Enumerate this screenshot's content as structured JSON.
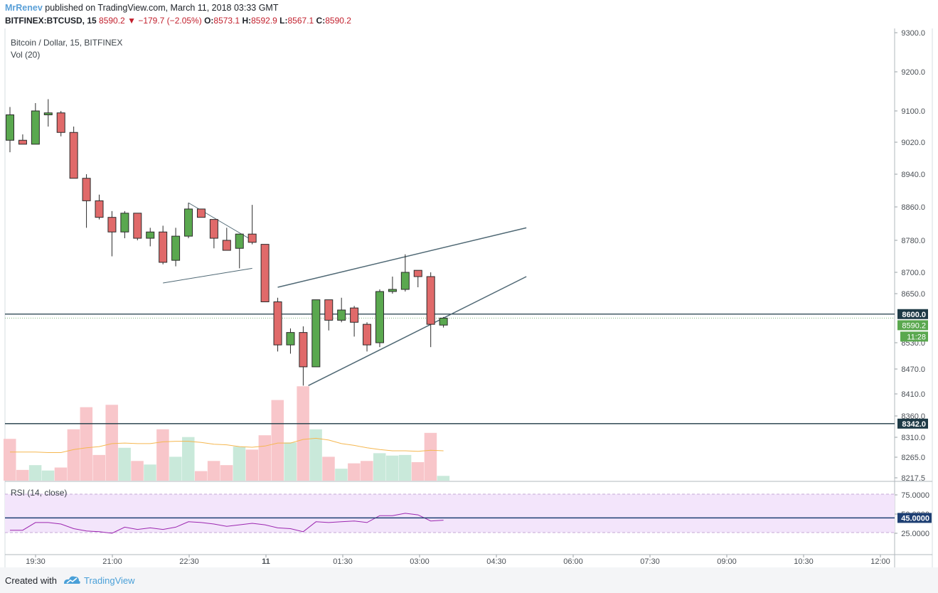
{
  "header": {
    "author": "MrRenev",
    "published_text": "published on TradingView.com, March 11, 2018 03:33 GMT",
    "symbol": "BITFINEX:BTCUSD, 15",
    "last": "8590.2",
    "change": "−179.7 (−2.05%)",
    "o_label": "O:",
    "o_value": "8573.1",
    "h_label": "H:",
    "h_value": "8592.9",
    "l_label": "L:",
    "l_value": "8567.1",
    "c_label": "C:",
    "c_value": "8590.2"
  },
  "legend": {
    "title": "Bitcoin / Dollar, 15, BITFINEX",
    "vol": "Vol (20)",
    "rsi": "RSI (14, close)"
  },
  "footer": {
    "created_with": "Created with",
    "brand": "TradingView",
    "icon": "tradingview-logo-icon"
  },
  "colors": {
    "up": "#5aa84f",
    "down": "#e06a6a",
    "vol_up": "#c9e9da",
    "vol_down": "#f8c6ca",
    "hline": "#1e3a46",
    "rsi_line": "#9c27b0",
    "rsi_band": "#f3e5fb",
    "ma": "#f5b750",
    "trendline": "#4f6874"
  },
  "chart_data": {
    "type": "candlestick",
    "price_axis_ticks": [
      9300,
      9200,
      9100,
      9020,
      8940,
      8860,
      8780,
      8700,
      8650,
      8530,
      8470,
      8410,
      8360,
      8310,
      8265,
      8217.5
    ],
    "price_axis_tick_labels": [
      "9300.0",
      "9200.0",
      "9100.0",
      "9020.0",
      "8940.0",
      "8860.0",
      "8780.0",
      "8700.0",
      "8650.0",
      "8530.0",
      "8470.0",
      "8410.0",
      "8360.0",
      "8310.0",
      "8265.0",
      "8217.5"
    ],
    "time_axis_labels": [
      "19:30",
      "21:00",
      "22:30",
      "11",
      "01:30",
      "03:00",
      "04:30",
      "06:00",
      "07:30",
      "09:00",
      "10:30",
      "12:00"
    ],
    "horizontal_levels": [
      {
        "value": 8600,
        "label": "8600.0"
      },
      {
        "value": 8342,
        "label": "8342.0"
      }
    ],
    "last_price_label": "8590.2",
    "countdown_label": "11:28",
    "candles": [
      {
        "o": 9025,
        "h": 9110,
        "l": 8995,
        "c": 9090
      },
      {
        "o": 9025,
        "h": 9040,
        "l": 9015,
        "c": 9015
      },
      {
        "o": 9015,
        "h": 9120,
        "l": 9015,
        "c": 9100
      },
      {
        "o": 9090,
        "h": 9130,
        "l": 9060,
        "c": 9095
      },
      {
        "o": 9095,
        "h": 9100,
        "l": 9035,
        "c": 9045
      },
      {
        "o": 9045,
        "h": 9060,
        "l": 8930,
        "c": 8930
      },
      {
        "o": 8930,
        "h": 8940,
        "l": 8810,
        "c": 8875
      },
      {
        "o": 8875,
        "h": 8890,
        "l": 8830,
        "c": 8835
      },
      {
        "o": 8835,
        "h": 8850,
        "l": 8740,
        "c": 8800
      },
      {
        "o": 8800,
        "h": 8850,
        "l": 8785,
        "c": 8845
      },
      {
        "o": 8845,
        "h": 8845,
        "l": 8780,
        "c": 8785
      },
      {
        "o": 8785,
        "h": 8810,
        "l": 8765,
        "c": 8800
      },
      {
        "o": 8800,
        "h": 8815,
        "l": 8720,
        "c": 8725
      },
      {
        "o": 8730,
        "h": 8810,
        "l": 8715,
        "c": 8790
      },
      {
        "o": 8790,
        "h": 8870,
        "l": 8785,
        "c": 8855
      },
      {
        "o": 8855,
        "h": 8855,
        "l": 8835,
        "c": 8835
      },
      {
        "o": 8830,
        "h": 8830,
        "l": 8760,
        "c": 8785
      },
      {
        "o": 8780,
        "h": 8810,
        "l": 8755,
        "c": 8755
      },
      {
        "o": 8760,
        "h": 8790,
        "l": 8710,
        "c": 8795
      },
      {
        "o": 8795,
        "h": 8865,
        "l": 8770,
        "c": 8775
      },
      {
        "o": 8770,
        "h": 8770,
        "l": 8630,
        "c": 8630
      },
      {
        "o": 8630,
        "h": 8640,
        "l": 8510,
        "c": 8525
      },
      {
        "o": 8525,
        "h": 8565,
        "l": 8505,
        "c": 8555
      },
      {
        "o": 8555,
        "h": 8570,
        "l": 8430,
        "c": 8475
      },
      {
        "o": 8475,
        "h": 8635,
        "l": 8475,
        "c": 8635
      },
      {
        "o": 8635,
        "h": 8635,
        "l": 8560,
        "c": 8585
      },
      {
        "o": 8585,
        "h": 8640,
        "l": 8580,
        "c": 8610
      },
      {
        "o": 8615,
        "h": 8620,
        "l": 8545,
        "c": 8580
      },
      {
        "o": 8575,
        "h": 8580,
        "l": 8510,
        "c": 8525
      },
      {
        "o": 8530,
        "h": 8660,
        "l": 8520,
        "c": 8655
      },
      {
        "o": 8655,
        "h": 8690,
        "l": 8650,
        "c": 8660
      },
      {
        "o": 8660,
        "h": 8745,
        "l": 8655,
        "c": 8700
      },
      {
        "o": 8705,
        "h": 8705,
        "l": 8665,
        "c": 8690
      },
      {
        "o": 8690,
        "h": 8700,
        "l": 8520,
        "c": 8575
      },
      {
        "o": 8573.1,
        "h": 8592.9,
        "l": 8567.1,
        "c": 8590.2
      }
    ],
    "volume": [
      {
        "v": 70,
        "up": false
      },
      {
        "v": 18,
        "up": false
      },
      {
        "v": 26,
        "up": true
      },
      {
        "v": 17,
        "up": true
      },
      {
        "v": 22,
        "up": false
      },
      {
        "v": 86,
        "up": false
      },
      {
        "v": 123,
        "up": false
      },
      {
        "v": 43,
        "up": false
      },
      {
        "v": 127,
        "up": false
      },
      {
        "v": 55,
        "up": true
      },
      {
        "v": 33,
        "up": false
      },
      {
        "v": 27,
        "up": true
      },
      {
        "v": 86,
        "up": false
      },
      {
        "v": 40,
        "up": true
      },
      {
        "v": 73,
        "up": true
      },
      {
        "v": 16,
        "up": false
      },
      {
        "v": 33,
        "up": false
      },
      {
        "v": 26,
        "up": false
      },
      {
        "v": 57,
        "up": true
      },
      {
        "v": 52,
        "up": false
      },
      {
        "v": 76,
        "up": false
      },
      {
        "v": 135,
        "up": false
      },
      {
        "v": 64,
        "up": true
      },
      {
        "v": 158,
        "up": false
      },
      {
        "v": 86,
        "up": true
      },
      {
        "v": 40,
        "up": false
      },
      {
        "v": 20,
        "up": true
      },
      {
        "v": 29,
        "up": false
      },
      {
        "v": 33,
        "up": false
      },
      {
        "v": 46,
        "up": true
      },
      {
        "v": 42,
        "up": true
      },
      {
        "v": 43,
        "up": true
      },
      {
        "v": 31,
        "up": false
      },
      {
        "v": 80,
        "up": false
      },
      {
        "v": 8,
        "up": true
      }
    ],
    "volume_ma": [
      48,
      48,
      48,
      47,
      47,
      52,
      55,
      57,
      62,
      63,
      62,
      62,
      65,
      66,
      66,
      64,
      61,
      60,
      57,
      56,
      58,
      63,
      63,
      69,
      71,
      68,
      62,
      59,
      55,
      52,
      50,
      50,
      49,
      51,
      50
    ],
    "rsi_axis_ticks": [
      75,
      50,
      25
    ],
    "rsi_axis_tick_labels": [
      "75.0000",
      "50.0000",
      "25.0000"
    ],
    "rsi_level": {
      "value": 45,
      "label": "45.0000"
    },
    "rsi": [
      29,
      29,
      39,
      39,
      37,
      31,
      28,
      27,
      25,
      33,
      30,
      32,
      30,
      33,
      40,
      39,
      37,
      34,
      36,
      38,
      36,
      32,
      31,
      27,
      40,
      39,
      40,
      41,
      39,
      48,
      48,
      51,
      49,
      41,
      42
    ],
    "trendlines": [
      {
        "name": "triangle-upper",
        "from": {
          "bar": 14,
          "price": 8870
        },
        "to": {
          "bar": 19,
          "price": 8780
        }
      },
      {
        "name": "triangle-lower",
        "from": {
          "bar": 12,
          "price": 8675
        },
        "to": {
          "bar": 19,
          "price": 8710
        }
      },
      {
        "name": "wedge-upper",
        "from": {
          "bar": 21,
          "price": 8665
        },
        "to": {
          "bar": 40.5,
          "price": 8810
        }
      },
      {
        "name": "wedge-lower",
        "from": {
          "bar": 23.4,
          "price": 8430
        },
        "to": {
          "bar": 40.5,
          "price": 8690
        }
      }
    ]
  }
}
